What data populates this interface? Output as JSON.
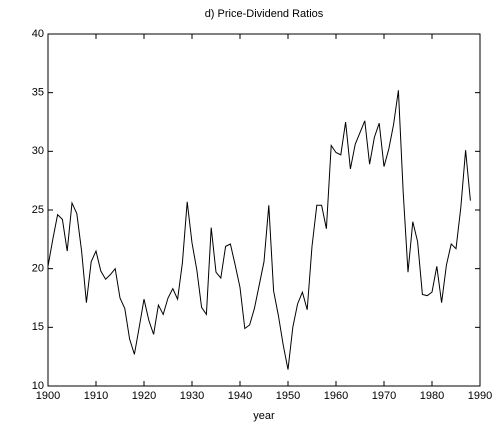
{
  "chart_data": {
    "type": "line",
    "title": "d) Price-Dividend Ratios",
    "xlabel": "year",
    "x": [
      1900,
      1901,
      1902,
      1903,
      1904,
      1905,
      1906,
      1907,
      1908,
      1909,
      1910,
      1911,
      1912,
      1913,
      1914,
      1915,
      1916,
      1917,
      1918,
      1919,
      1920,
      1921,
      1922,
      1923,
      1924,
      1925,
      1926,
      1927,
      1928,
      1929,
      1930,
      1931,
      1932,
      1933,
      1934,
      1935,
      1936,
      1937,
      1938,
      1939,
      1940,
      1941,
      1942,
      1943,
      1944,
      1945,
      1946,
      1947,
      1948,
      1949,
      1950,
      1951,
      1952,
      1953,
      1954,
      1955,
      1956,
      1957,
      1958,
      1959,
      1960,
      1961,
      1962,
      1963,
      1964,
      1965,
      1966,
      1967,
      1968,
      1969,
      1970,
      1971,
      1972,
      1973,
      1974,
      1975,
      1976,
      1977,
      1978,
      1979,
      1980,
      1981,
      1982,
      1983,
      1984,
      1985,
      1986,
      1987,
      1988
    ],
    "series": [
      {
        "color": "#000000",
        "values": [
          20.2,
          22.5,
          24.6,
          24.2,
          21.5,
          25.6,
          24.7,
          21.5,
          17.1,
          20.6,
          21.5,
          19.8,
          19.1,
          19.5,
          20.0,
          17.5,
          16.6,
          14.0,
          12.7,
          15.0,
          17.4,
          15.6,
          14.4,
          16.9,
          16.1,
          17.5,
          18.3,
          17.4,
          20.5,
          25.7,
          22.2,
          19.9,
          16.7,
          16.1,
          23.5,
          19.7,
          19.2,
          21.9,
          22.1,
          20.3,
          18.4,
          14.9,
          15.2,
          16.6,
          18.6,
          20.6,
          25.4,
          18.1,
          16.0,
          13.5,
          11.4,
          15.0,
          17.0,
          18.0,
          16.5,
          21.9,
          25.4,
          25.4,
          23.4,
          30.5,
          29.9,
          29.7,
          32.5,
          28.5,
          30.6,
          31.6,
          32.6,
          28.9,
          31.2,
          32.4,
          28.7,
          30.2,
          32.3,
          35.2,
          26.5,
          19.7,
          24.0,
          22.3,
          17.8,
          17.7,
          18.0,
          20.2,
          17.1,
          20.3,
          22.1,
          21.7,
          25.2,
          30.1,
          25.8
        ]
      }
    ],
    "xlim": [
      1900,
      1990
    ],
    "xticks": [
      1900,
      1910,
      1920,
      1930,
      1940,
      1950,
      1960,
      1970,
      1980,
      1990
    ],
    "ylim": [
      10,
      40
    ],
    "yticks": [
      10,
      15,
      20,
      25,
      30,
      35,
      40
    ]
  }
}
